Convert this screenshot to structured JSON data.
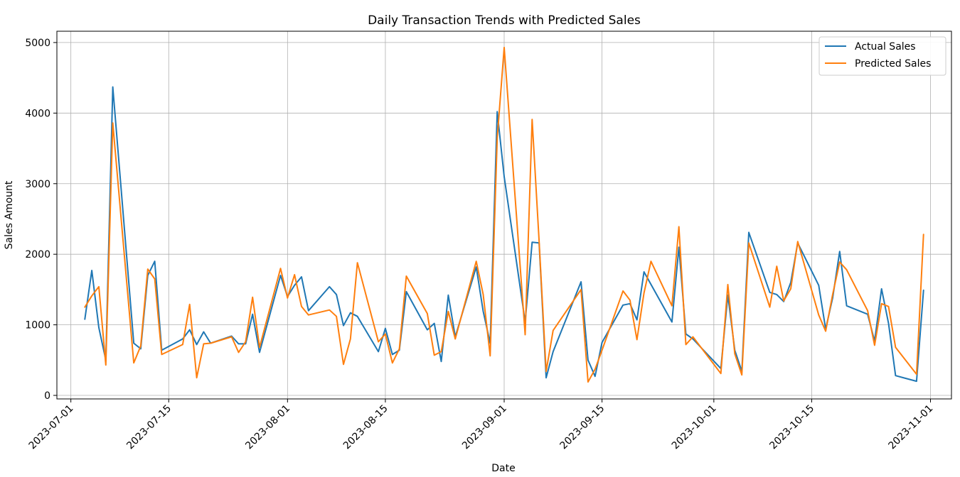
{
  "chart_data": {
    "type": "line",
    "title": "Daily Transaction Trends with Predicted Sales",
    "xlabel": "Date",
    "ylabel": "Sales Amount",
    "xlim": [
      "2023-06-29",
      "2023-11-04"
    ],
    "ylim": [
      -50,
      5160
    ],
    "grid": true,
    "legend_position": "top-right",
    "x_ticks": [
      "2023-07-01",
      "2023-07-15",
      "2023-08-01",
      "2023-08-15",
      "2023-09-01",
      "2023-09-15",
      "2023-10-01",
      "2023-10-15",
      "2023-11-01"
    ],
    "y_ticks": [
      0,
      1000,
      2000,
      3000,
      4000,
      5000
    ],
    "series": [
      {
        "name": "Actual Sales",
        "color": "#1f77b4",
        "points": [
          [
            "2023-07-03",
            1080
          ],
          [
            "2023-07-04",
            1770
          ],
          [
            "2023-07-05",
            960
          ],
          [
            "2023-07-06",
            500
          ],
          [
            "2023-07-07",
            4370
          ],
          [
            "2023-07-10",
            740
          ],
          [
            "2023-07-11",
            660
          ],
          [
            "2023-07-12",
            1700
          ],
          [
            "2023-07-13",
            1900
          ],
          [
            "2023-07-14",
            640
          ],
          [
            "2023-07-17",
            800
          ],
          [
            "2023-07-18",
            930
          ],
          [
            "2023-07-19",
            720
          ],
          [
            "2023-07-20",
            900
          ],
          [
            "2023-07-21",
            740
          ],
          [
            "2023-07-24",
            840
          ],
          [
            "2023-07-25",
            730
          ],
          [
            "2023-07-26",
            730
          ],
          [
            "2023-07-27",
            1150
          ],
          [
            "2023-07-28",
            610
          ],
          [
            "2023-07-31",
            1700
          ],
          [
            "2023-08-01",
            1400
          ],
          [
            "2023-08-02",
            1560
          ],
          [
            "2023-08-03",
            1680
          ],
          [
            "2023-08-04",
            1200
          ],
          [
            "2023-08-07",
            1540
          ],
          [
            "2023-08-08",
            1430
          ],
          [
            "2023-08-09",
            990
          ],
          [
            "2023-08-10",
            1170
          ],
          [
            "2023-08-11",
            1120
          ],
          [
            "2023-08-14",
            620
          ],
          [
            "2023-08-15",
            950
          ],
          [
            "2023-08-16",
            580
          ],
          [
            "2023-08-17",
            640
          ],
          [
            "2023-08-18",
            1470
          ],
          [
            "2023-08-21",
            930
          ],
          [
            "2023-08-22",
            1020
          ],
          [
            "2023-08-23",
            480
          ],
          [
            "2023-08-24",
            1420
          ],
          [
            "2023-08-25",
            830
          ],
          [
            "2023-08-28",
            1820
          ],
          [
            "2023-08-29",
            1190
          ],
          [
            "2023-08-30",
            740
          ],
          [
            "2023-08-31",
            4020
          ],
          [
            "2023-09-01",
            3100
          ],
          [
            "2023-09-04",
            1040
          ],
          [
            "2023-09-05",
            2170
          ],
          [
            "2023-09-06",
            2160
          ],
          [
            "2023-09-07",
            250
          ],
          [
            "2023-09-08",
            620
          ],
          [
            "2023-09-12",
            1610
          ],
          [
            "2023-09-13",
            500
          ],
          [
            "2023-09-14",
            270
          ],
          [
            "2023-09-15",
            750
          ],
          [
            "2023-09-18",
            1280
          ],
          [
            "2023-09-19",
            1300
          ],
          [
            "2023-09-20",
            1070
          ],
          [
            "2023-09-21",
            1750
          ],
          [
            "2023-09-25",
            1040
          ],
          [
            "2023-09-26",
            2100
          ],
          [
            "2023-09-27",
            870
          ],
          [
            "2023-09-28",
            800
          ],
          [
            "2023-10-02",
            380
          ],
          [
            "2023-10-03",
            1420
          ],
          [
            "2023-10-04",
            640
          ],
          [
            "2023-10-05",
            340
          ],
          [
            "2023-10-06",
            2310
          ],
          [
            "2023-10-09",
            1460
          ],
          [
            "2023-10-10",
            1430
          ],
          [
            "2023-10-11",
            1330
          ],
          [
            "2023-10-12",
            1600
          ],
          [
            "2023-10-13",
            2160
          ],
          [
            "2023-10-16",
            1560
          ],
          [
            "2023-10-17",
            940
          ],
          [
            "2023-10-18",
            1380
          ],
          [
            "2023-10-19",
            2040
          ],
          [
            "2023-10-20",
            1270
          ],
          [
            "2023-10-23",
            1150
          ],
          [
            "2023-10-24",
            770
          ],
          [
            "2023-10-25",
            1510
          ],
          [
            "2023-10-26",
            1020
          ],
          [
            "2023-10-27",
            280
          ],
          [
            "2023-10-30",
            200
          ],
          [
            "2023-10-31",
            1490
          ]
        ]
      },
      {
        "name": "Predicted Sales",
        "color": "#ff7f0e",
        "points": [
          [
            "2023-07-03",
            1250
          ],
          [
            "2023-07-04",
            1410
          ],
          [
            "2023-07-05",
            1540
          ],
          [
            "2023-07-06",
            430
          ],
          [
            "2023-07-07",
            3860
          ],
          [
            "2023-07-10",
            460
          ],
          [
            "2023-07-11",
            700
          ],
          [
            "2023-07-12",
            1790
          ],
          [
            "2023-07-13",
            1650
          ],
          [
            "2023-07-14",
            580
          ],
          [
            "2023-07-17",
            720
          ],
          [
            "2023-07-18",
            1290
          ],
          [
            "2023-07-19",
            250
          ],
          [
            "2023-07-20",
            730
          ],
          [
            "2023-07-21",
            740
          ],
          [
            "2023-07-24",
            830
          ],
          [
            "2023-07-25",
            610
          ],
          [
            "2023-07-26",
            760
          ],
          [
            "2023-07-27",
            1390
          ],
          [
            "2023-07-28",
            680
          ],
          [
            "2023-07-31",
            1800
          ],
          [
            "2023-08-01",
            1380
          ],
          [
            "2023-08-02",
            1710
          ],
          [
            "2023-08-03",
            1260
          ],
          [
            "2023-08-04",
            1140
          ],
          [
            "2023-08-07",
            1210
          ],
          [
            "2023-08-08",
            1120
          ],
          [
            "2023-08-09",
            440
          ],
          [
            "2023-08-10",
            800
          ],
          [
            "2023-08-11",
            1880
          ],
          [
            "2023-08-14",
            760
          ],
          [
            "2023-08-15",
            870
          ],
          [
            "2023-08-16",
            460
          ],
          [
            "2023-08-17",
            660
          ],
          [
            "2023-08-18",
            1690
          ],
          [
            "2023-08-21",
            1160
          ],
          [
            "2023-08-22",
            570
          ],
          [
            "2023-08-23",
            620
          ],
          [
            "2023-08-24",
            1190
          ],
          [
            "2023-08-25",
            800
          ],
          [
            "2023-08-28",
            1900
          ],
          [
            "2023-08-29",
            1430
          ],
          [
            "2023-08-30",
            560
          ],
          [
            "2023-08-31",
            3640
          ],
          [
            "2023-09-01",
            4930
          ],
          [
            "2023-09-04",
            860
          ],
          [
            "2023-09-05",
            3910
          ],
          [
            "2023-09-06",
            2190
          ],
          [
            "2023-09-07",
            340
          ],
          [
            "2023-09-08",
            920
          ],
          [
            "2023-09-12",
            1500
          ],
          [
            "2023-09-13",
            190
          ],
          [
            "2023-09-14",
            370
          ],
          [
            "2023-09-15",
            640
          ],
          [
            "2023-09-18",
            1480
          ],
          [
            "2023-09-19",
            1350
          ],
          [
            "2023-09-20",
            790
          ],
          [
            "2023-09-21",
            1450
          ],
          [
            "2023-09-22",
            1900
          ],
          [
            "2023-09-25",
            1270
          ],
          [
            "2023-09-26",
            2390
          ],
          [
            "2023-09-27",
            720
          ],
          [
            "2023-09-28",
            830
          ],
          [
            "2023-10-02",
            310
          ],
          [
            "2023-10-03",
            1570
          ],
          [
            "2023-10-04",
            590
          ],
          [
            "2023-10-05",
            290
          ],
          [
            "2023-10-06",
            2160
          ],
          [
            "2023-10-09",
            1250
          ],
          [
            "2023-10-10",
            1830
          ],
          [
            "2023-10-11",
            1340
          ],
          [
            "2023-10-12",
            1510
          ],
          [
            "2023-10-13",
            2180
          ],
          [
            "2023-10-16",
            1140
          ],
          [
            "2023-10-17",
            910
          ],
          [
            "2023-10-18",
            1430
          ],
          [
            "2023-10-19",
            1890
          ],
          [
            "2023-10-20",
            1780
          ],
          [
            "2023-10-23",
            1200
          ],
          [
            "2023-10-24",
            710
          ],
          [
            "2023-10-25",
            1300
          ],
          [
            "2023-10-26",
            1260
          ],
          [
            "2023-10-27",
            680
          ],
          [
            "2023-10-30",
            300
          ],
          [
            "2023-10-31",
            2280
          ]
        ]
      }
    ]
  }
}
